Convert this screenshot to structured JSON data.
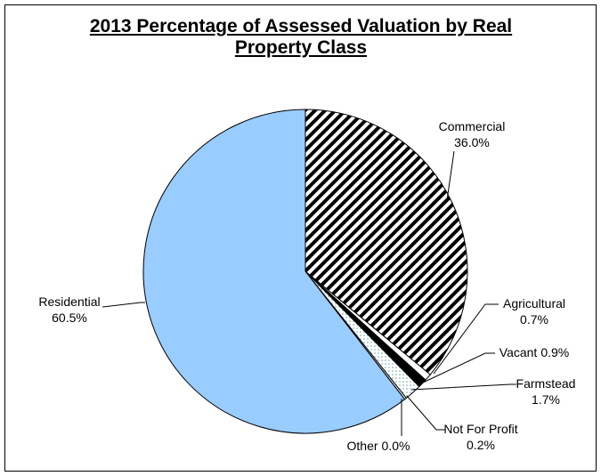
{
  "chart_data": {
    "type": "pie",
    "title": "2013 Percentage of Assessed Valuation by Real Property Class",
    "categories": [
      "Commercial",
      "Agricultural",
      "Vacant",
      "Farmstead",
      "Not For Profit",
      "Other",
      "Residential"
    ],
    "values": [
      36.0,
      0.7,
      0.9,
      1.7,
      0.2,
      0.0,
      60.5
    ],
    "value_labels": [
      "36.0%",
      "0.7%",
      "0.9%",
      "1.7%",
      "0.2%",
      "0.0%",
      "60.5%"
    ],
    "colors": [
      "hatch",
      "#ffffff",
      "#000000",
      "dots",
      "#ffffff",
      "#ffffff",
      "#99ccff"
    ]
  }
}
